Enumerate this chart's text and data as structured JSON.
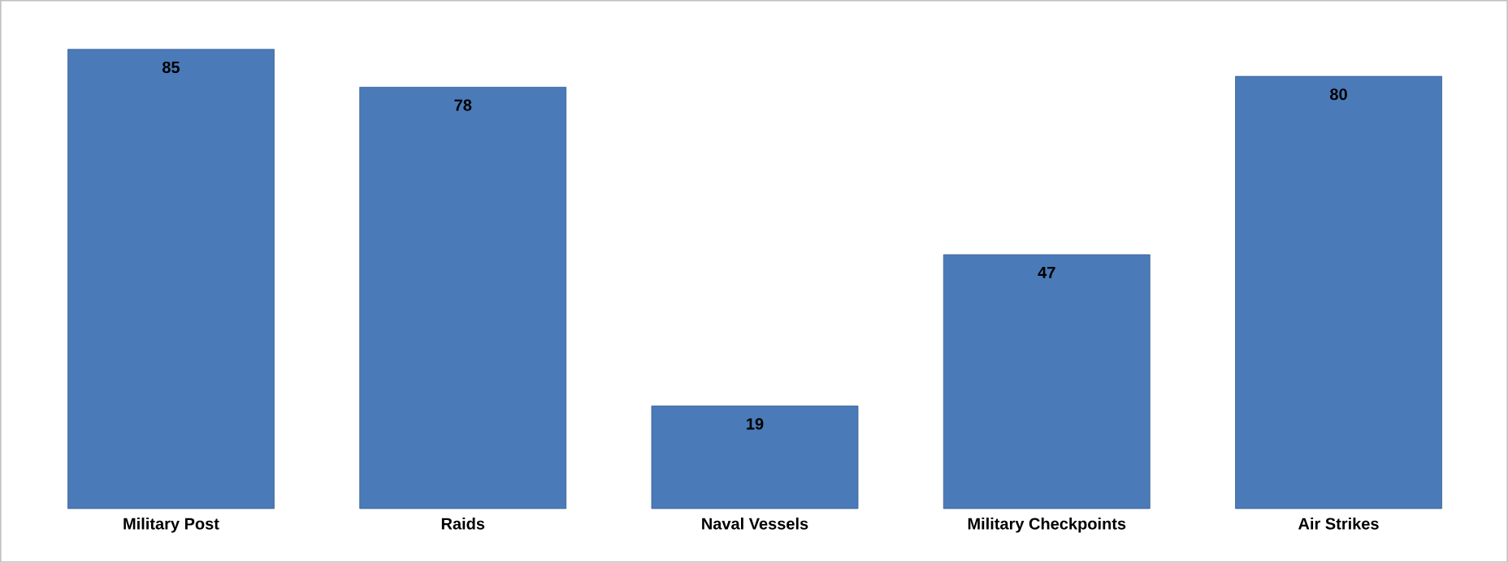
{
  "chart_data": {
    "type": "bar",
    "categories": [
      "Military Post",
      "Raids",
      "Naval Vessels",
      "Military Checkpoints",
      "Air Strikes"
    ],
    "values": [
      85,
      78,
      19,
      47,
      80
    ],
    "color": "#4a7ab8",
    "data_labels": true
  }
}
